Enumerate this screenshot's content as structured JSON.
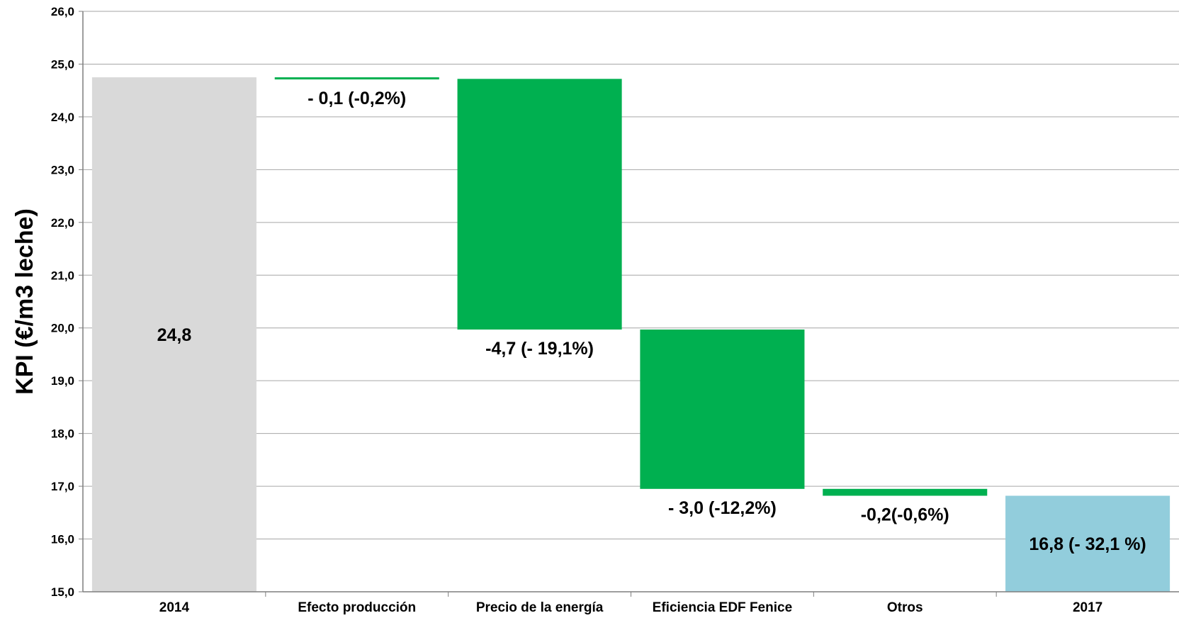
{
  "chart_data": {
    "type": "waterfall",
    "title": "",
    "xlabel": "",
    "ylabel": "KPI (€/m3 leche)",
    "ylim": [
      15.0,
      26.0
    ],
    "yticks": [
      "15,0",
      "16,0",
      "17,0",
      "18,0",
      "19,0",
      "20,0",
      "21,0",
      "22,0",
      "23,0",
      "24,0",
      "25,0",
      "26,0"
    ],
    "grid": true,
    "legend": "none",
    "categories": [
      "2014",
      "Efecto producción",
      "Precio de la energía",
      "Eficiencia EDF Fenice",
      "Otros",
      "2017"
    ],
    "bars": [
      {
        "kind": "total",
        "start": 15.0,
        "end": 24.75,
        "label": "24,8",
        "color": "#d9d9d9"
      },
      {
        "kind": "delta",
        "start": 24.75,
        "end": 24.72,
        "label": "- 0,1 (-0,2%)",
        "color": "#00b050"
      },
      {
        "kind": "delta",
        "start": 24.72,
        "end": 19.97,
        "label": "-4,7 (- 19,1%)",
        "color": "#00b050"
      },
      {
        "kind": "delta",
        "start": 19.97,
        "end": 16.95,
        "label": "- 3,0 (-12,2%)",
        "color": "#00b050"
      },
      {
        "kind": "delta",
        "start": 16.95,
        "end": 16.82,
        "label": "-0,2(-0,6%)",
        "color": "#00b050"
      },
      {
        "kind": "total",
        "start": 15.0,
        "end": 16.82,
        "label": "16,8 (- 32,1 %)",
        "color": "#92cddc"
      }
    ]
  }
}
